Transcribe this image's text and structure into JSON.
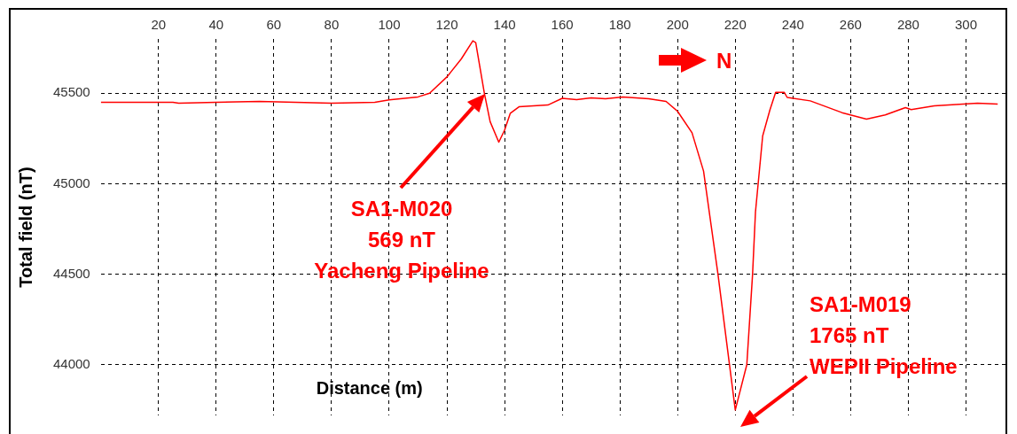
{
  "chart_data": {
    "type": "line",
    "xlabel": "Distance (m)",
    "ylabel": "Total field (nT)",
    "x": [
      0,
      25,
      27,
      40,
      55,
      80,
      95,
      100,
      110,
      114,
      120,
      125,
      129,
      130,
      133,
      135,
      138,
      140,
      142,
      145,
      150,
      155,
      160,
      165,
      170,
      175,
      181,
      190,
      196,
      200,
      205,
      209,
      214,
      218,
      220,
      224,
      226,
      227,
      229.5,
      232,
      234,
      237,
      238,
      246,
      257,
      265.5,
      272,
      279,
      281,
      289,
      304,
      311
    ],
    "series": [
      {
        "color": "#ff0000",
        "values": [
          45450,
          45450,
          45445,
          45450,
          45455,
          45445,
          45450,
          45463,
          45480,
          45500,
          45590,
          45690,
          45790,
          45780,
          45500,
          45343,
          45230,
          45296,
          45390,
          45425,
          45430,
          45435,
          45472,
          45465,
          45475,
          45470,
          45480,
          45470,
          45455,
          45400,
          45282,
          45070,
          44500,
          44000,
          43750,
          44000,
          44500,
          44843,
          45264,
          45407,
          45505,
          45505,
          45477,
          45458,
          45393,
          45357,
          45380,
          45421,
          45410,
          45430,
          45445,
          45440
        ]
      }
    ],
    "xlim": [
      0,
      314
    ],
    "xticks": [
      20,
      40,
      60,
      80,
      100,
      120,
      140,
      160,
      180,
      200,
      220,
      240,
      260,
      280,
      300
    ],
    "ylim": [
      43720,
      45800
    ],
    "yticks": [
      44000,
      44500,
      45000,
      45500
    ],
    "grid": true,
    "legend": false,
    "marker": "none",
    "line_style": "solid",
    "annotations": [
      "SA1-M020\n569 nT\nYacheng Pipeline",
      "SA1-M019\n1765 nT\nWEPII Pipeline",
      "N"
    ]
  }
}
